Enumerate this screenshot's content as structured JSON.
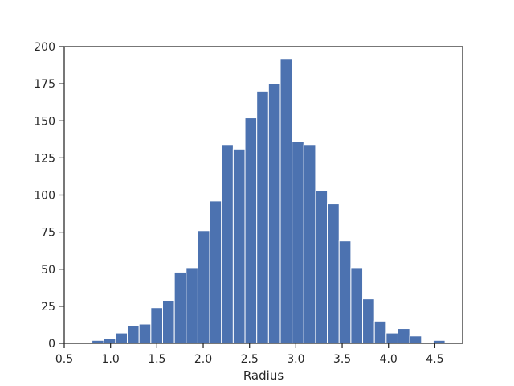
{
  "chart_data": {
    "type": "bar",
    "subtype": "histogram",
    "title": "",
    "xlabel": "Radius",
    "ylabel": "",
    "xlim": [
      0.5,
      4.8
    ],
    "ylim": [
      0,
      200
    ],
    "bin_start": 0.8,
    "bin_width": 0.127,
    "values": [
      2,
      3,
      7,
      12,
      13,
      24,
      29,
      48,
      51,
      76,
      96,
      134,
      131,
      152,
      170,
      175,
      192,
      136,
      134,
      103,
      94,
      69,
      51,
      30,
      15,
      7,
      10,
      5,
      0,
      2
    ],
    "x_ticks": [
      "0.5",
      "1.0",
      "1.5",
      "2.0",
      "2.5",
      "3.0",
      "3.5",
      "4.0",
      "4.5"
    ],
    "y_ticks": [
      "0",
      "25",
      "50",
      "75",
      "100",
      "125",
      "150",
      "175",
      "200"
    ],
    "grid": false,
    "legend": "none",
    "bar_color": "#4c72b0",
    "edge_color": "#ffffff"
  }
}
